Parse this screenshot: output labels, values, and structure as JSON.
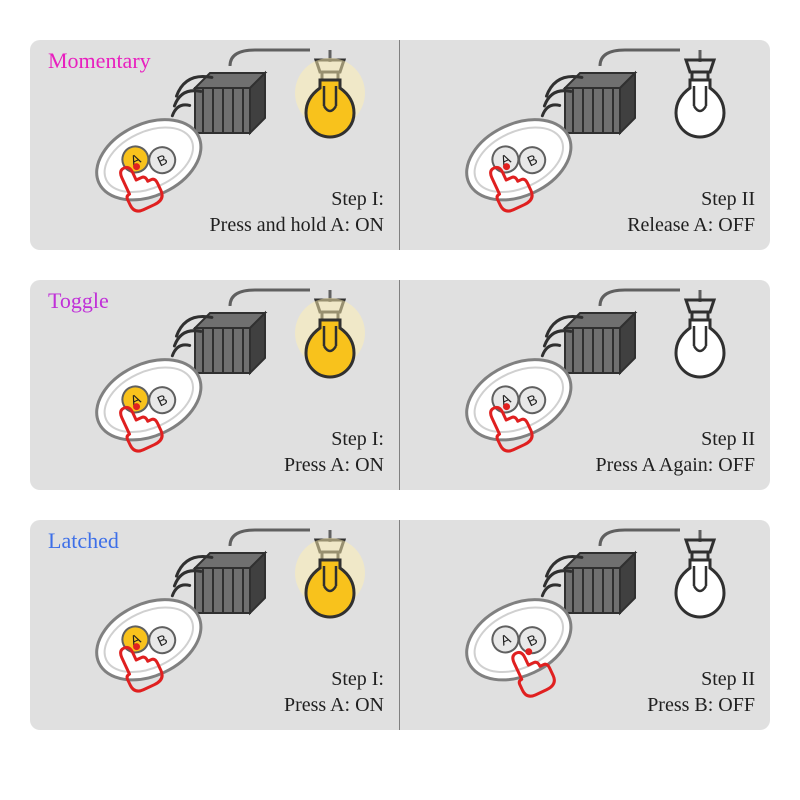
{
  "colors": {
    "panel_bg": "#e0e0e0",
    "outline": "#404040",
    "wire": "#606060",
    "bulb_on_fill": "#f8c21c",
    "bulb_on_glow": "#fff0b0",
    "bulb_off_fill": "#ffffff",
    "remote_body": "#ffffff",
    "remote_stroke": "#808080",
    "button_a_on": "#f8c21c",
    "button_a_off": "#e8e8e8",
    "button_b": "#e8e8e8",
    "hand_stroke": "#e02020",
    "receiver_fill": "#707070",
    "receiver_dark": "#404040",
    "title_momentary": "#e81fbf",
    "title_toggle": "#c02fd8",
    "title_latched": "#3d6fe8"
  },
  "fonts": {
    "title_size": 22,
    "step_size": 20
  },
  "modes": [
    {
      "id": "momentary",
      "title": "Momentary",
      "title_color_key": "title_momentary",
      "steps": [
        {
          "step_label": "Step I:",
          "action": "Press and hold A: ON",
          "bulb_on": true,
          "press_button": "A"
        },
        {
          "step_label": "Step II",
          "action": "Release A: OFF",
          "bulb_on": false,
          "press_button": "A"
        }
      ]
    },
    {
      "id": "toggle",
      "title": "Toggle",
      "title_color_key": "title_toggle",
      "steps": [
        {
          "step_label": "Step I:",
          "action": "Press A: ON",
          "bulb_on": true,
          "press_button": "A"
        },
        {
          "step_label": "Step II",
          "action": "Press A Again: OFF",
          "bulb_on": false,
          "press_button": "A"
        }
      ]
    },
    {
      "id": "latched",
      "title": "Latched",
      "title_color_key": "title_latched",
      "steps": [
        {
          "step_label": "Step I:",
          "action": "Press A: ON",
          "bulb_on": true,
          "press_button": "A"
        },
        {
          "step_label": "Step II",
          "action": "Press B: OFF",
          "bulb_on": false,
          "press_button": "B"
        }
      ]
    }
  ]
}
